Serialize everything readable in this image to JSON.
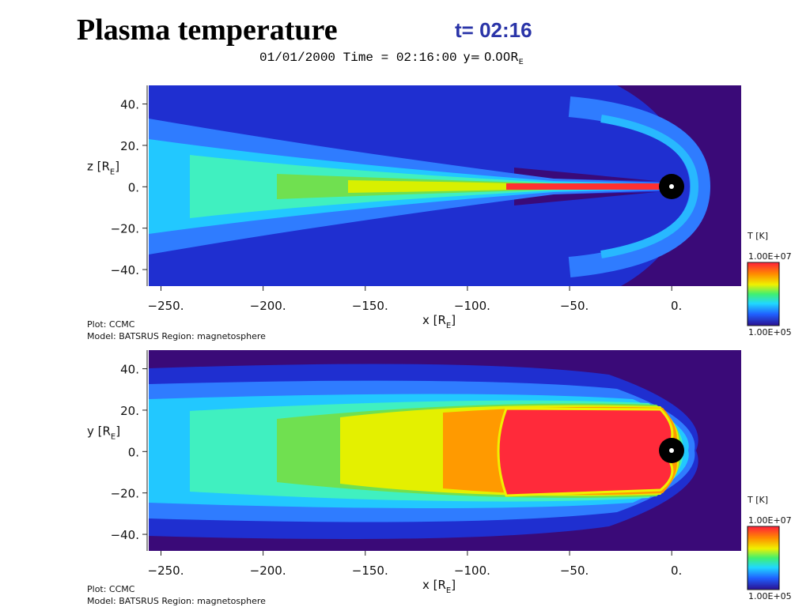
{
  "title": "Plasma temperature",
  "subtitle": "t= 02:16",
  "chart_data": [
    {
      "type": "contour",
      "header": {
        "text": "01/01/2000 Time = 02:16:00",
        "coord": "y= 0.00R",
        "coord_sub": "E"
      },
      "xlabel": {
        "text": "x [R",
        "sub": "E",
        "close": "]"
      },
      "ylabel": {
        "text": "z [R",
        "sub": "E",
        "close": "]"
      },
      "xlim": [
        -256,
        34
      ],
      "ylim": [
        -48,
        49
      ],
      "xticks": [
        {
          "value": -250,
          "label": "−250."
        },
        {
          "value": -200,
          "label": "−200."
        },
        {
          "value": -150,
          "label": "−150."
        },
        {
          "value": -100,
          "label": "−100."
        },
        {
          "value": -50,
          "label": "−50."
        },
        {
          "value": 0,
          "label": "0."
        }
      ],
      "yticks": [
        {
          "value": 40,
          "label": "40."
        },
        {
          "value": 20,
          "label": "20."
        },
        {
          "value": 0,
          "label": "0."
        },
        {
          "value": -20,
          "label": "−20."
        },
        {
          "value": -40,
          "label": "−40."
        }
      ],
      "colorbar": {
        "title": "T [K]",
        "log": true,
        "range": [
          100000,
          10000000
        ],
        "ticks": [
          {
            "value": 10000000,
            "label": "1.00E+07"
          },
          {
            "value": 100000,
            "label": "1.00E+05"
          }
        ]
      },
      "footer": [
        "Plot: CCMC",
        "Model: BATSRUS   Region: magnetosphere"
      ]
    },
    {
      "type": "contour",
      "xlabel": {
        "text": "x [R",
        "sub": "E",
        "close": "]"
      },
      "ylabel": {
        "text": "y [R",
        "sub": "E",
        "close": "]"
      },
      "xlim": [
        -256,
        34
      ],
      "ylim": [
        -48,
        49
      ],
      "xticks": [
        {
          "value": -250,
          "label": "−250."
        },
        {
          "value": -200,
          "label": "−200."
        },
        {
          "value": -150,
          "label": "−150."
        },
        {
          "value": -100,
          "label": "−100."
        },
        {
          "value": -50,
          "label": "−50."
        },
        {
          "value": 0,
          "label": "0."
        }
      ],
      "yticks": [
        {
          "value": 40,
          "label": "40."
        },
        {
          "value": 20,
          "label": "20."
        },
        {
          "value": 0,
          "label": "0."
        },
        {
          "value": -20,
          "label": "−20."
        },
        {
          "value": -40,
          "label": "−40."
        }
      ],
      "colorbar": {
        "title": "T [K]",
        "log": true,
        "range": [
          100000,
          10000000
        ],
        "ticks": [
          {
            "value": 10000000,
            "label": "1.00E+07"
          },
          {
            "value": 100000,
            "label": "1.00E+05"
          }
        ]
      },
      "footer": [
        "Plot: CCMC",
        "Model: BATSRUS   Region: magnetosphere"
      ]
    }
  ]
}
